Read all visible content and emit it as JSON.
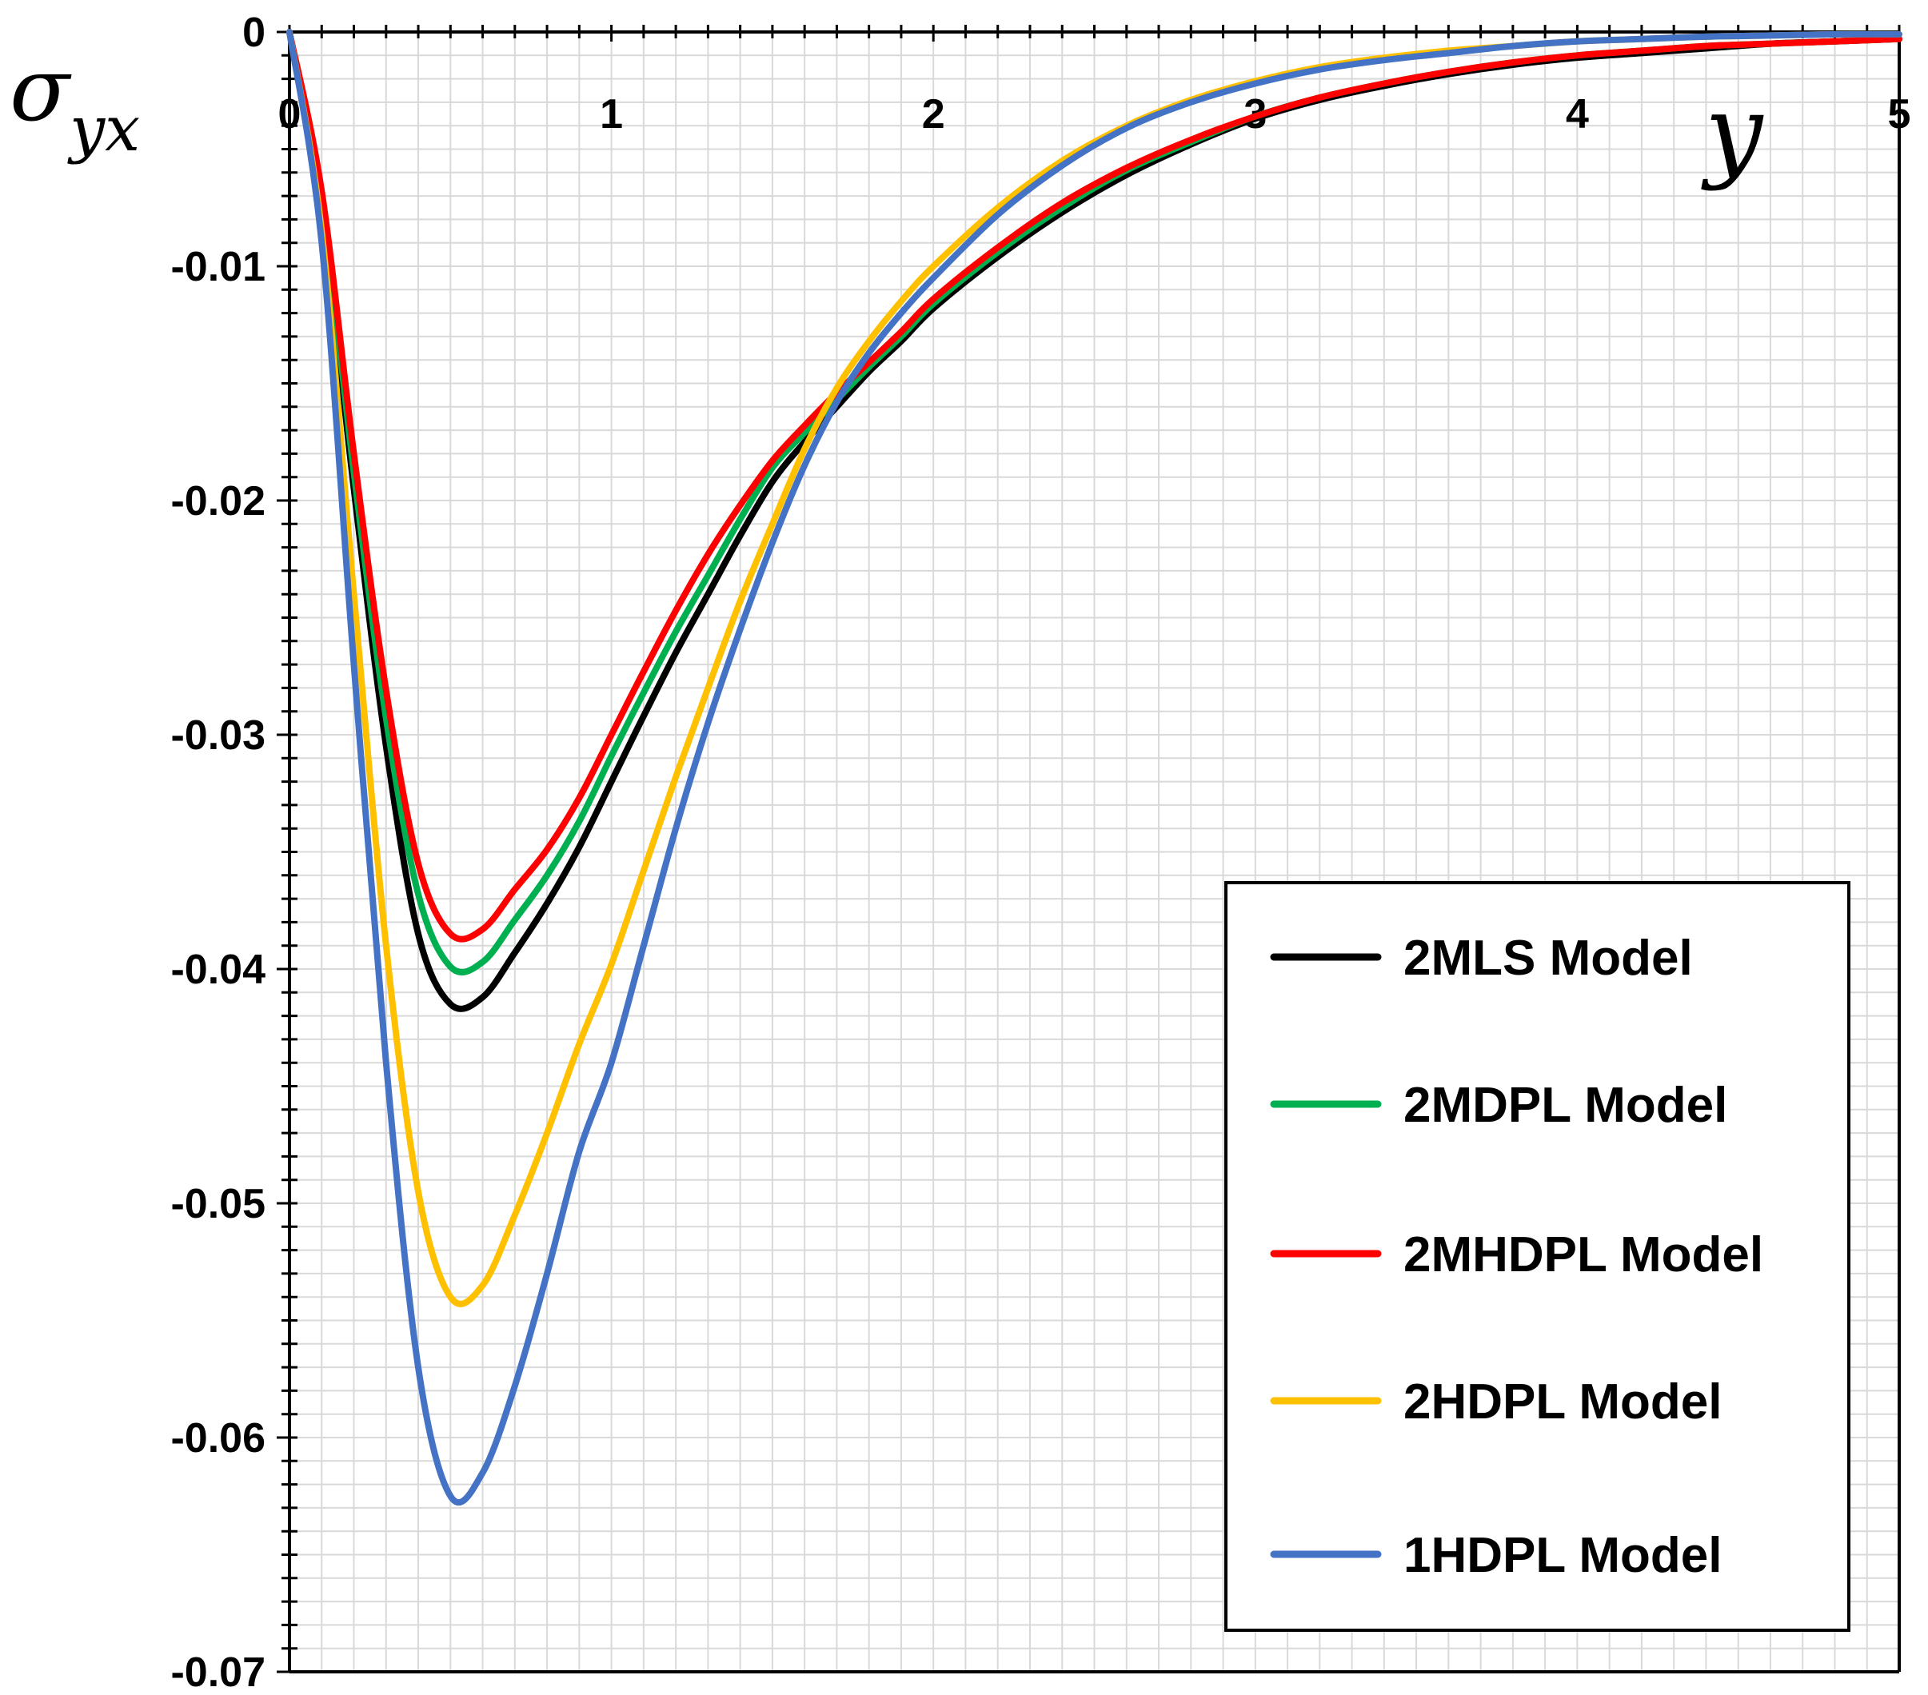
{
  "chart_data": {
    "type": "line",
    "title": "",
    "xlabel": "y",
    "ylabel": "σyx",
    "ylabel_main": "σ",
    "ylabel_sub": "yx",
    "xlim": [
      0,
      5
    ],
    "ylim": [
      -0.07,
      0
    ],
    "x_ticks": [
      0,
      1,
      2,
      3,
      4,
      5
    ],
    "x_tick_labels": [
      "0",
      "1",
      "2",
      "3",
      "4",
      "5"
    ],
    "y_ticks": [
      0,
      -0.01,
      -0.02,
      -0.03,
      -0.04,
      -0.05,
      -0.06,
      -0.07
    ],
    "y_tick_labels": [
      "0",
      "-0.01",
      "-0.02",
      "-0.03",
      "-0.04",
      "-0.05",
      "-0.06",
      "-0.07"
    ],
    "grid": true,
    "legend_position": "bottom-right",
    "x": [
      0,
      0.1,
      0.2,
      0.3,
      0.4,
      0.5,
      0.6,
      0.7,
      0.8,
      0.9,
      1.0,
      1.1,
      1.2,
      1.3,
      1.4,
      1.5,
      1.6,
      1.7,
      1.8,
      1.9,
      2.0,
      2.2,
      2.4,
      2.6,
      2.8,
      3.0,
      3.2,
      3.4,
      3.6,
      3.8,
      4.0,
      4.2,
      4.4,
      4.6,
      4.8,
      5.0
    ],
    "series": [
      {
        "name": "2MLS Model",
        "color": "#000000",
        "values": [
          0,
          -0.0075,
          -0.0195,
          -0.0305,
          -0.0385,
          -0.0415,
          -0.0412,
          -0.0393,
          -0.0372,
          -0.0348,
          -0.032,
          -0.0292,
          -0.0265,
          -0.024,
          -0.0215,
          -0.0192,
          -0.0175,
          -0.016,
          -0.0145,
          -0.0132,
          -0.0118,
          -0.0096,
          -0.0077,
          -0.0061,
          -0.0048,
          -0.0037,
          -0.0029,
          -0.0023,
          -0.0018,
          -0.0014,
          -0.0011,
          -0.0009,
          -0.0007,
          -0.0005,
          -0.0004,
          -0.0003
        ]
      },
      {
        "name": "2MDPL Model",
        "color": "#00b050",
        "values": [
          0,
          -0.0072,
          -0.0188,
          -0.0293,
          -0.0368,
          -0.0399,
          -0.0397,
          -0.0379,
          -0.036,
          -0.0337,
          -0.0309,
          -0.0282,
          -0.0256,
          -0.0232,
          -0.0208,
          -0.0186,
          -0.0171,
          -0.0157,
          -0.0143,
          -0.013,
          -0.0116,
          -0.0094,
          -0.0075,
          -0.0059,
          -0.0047,
          -0.0036,
          -0.0028,
          -0.0022,
          -0.0017,
          -0.0013,
          -0.001,
          -0.0008,
          -0.0006,
          -0.0005,
          -0.0004,
          -0.0003
        ]
      },
      {
        "name": "2MHDPL Model",
        "color": "#ff0000",
        "values": [
          0,
          -0.0068,
          -0.018,
          -0.0281,
          -0.0355,
          -0.0385,
          -0.0383,
          -0.0366,
          -0.0349,
          -0.0327,
          -0.03,
          -0.0273,
          -0.0247,
          -0.0223,
          -0.0202,
          -0.0183,
          -0.0168,
          -0.0154,
          -0.0141,
          -0.0128,
          -0.0114,
          -0.0092,
          -0.0073,
          -0.0058,
          -0.0046,
          -0.0036,
          -0.0028,
          -0.0022,
          -0.0017,
          -0.0013,
          -0.001,
          -0.0008,
          -0.0006,
          -0.0005,
          -0.0004,
          -0.0003
        ]
      },
      {
        "name": "2HDPL Model",
        "color": "#ffc000",
        "values": [
          0,
          -0.0085,
          -0.024,
          -0.039,
          -0.0495,
          -0.054,
          -0.0535,
          -0.0505,
          -0.047,
          -0.0432,
          -0.0398,
          -0.0358,
          -0.0318,
          -0.028,
          -0.0243,
          -0.021,
          -0.0178,
          -0.0152,
          -0.0132,
          -0.0115,
          -0.01,
          -0.0075,
          -0.0055,
          -0.004,
          -0.0029,
          -0.0021,
          -0.0015,
          -0.0011,
          -0.0008,
          -0.0006,
          -0.0004,
          -0.0003,
          -0.0002,
          -0.00015,
          -0.0001,
          -0.0001
        ]
      },
      {
        "name": "1HDPL Model",
        "color": "#4472c4",
        "values": [
          0,
          -0.009,
          -0.027,
          -0.044,
          -0.057,
          -0.0625,
          -0.0615,
          -0.0578,
          -0.053,
          -0.0478,
          -0.044,
          -0.039,
          -0.034,
          -0.0295,
          -0.0255,
          -0.0218,
          -0.0185,
          -0.0158,
          -0.0137,
          -0.012,
          -0.0105,
          -0.0078,
          -0.0057,
          -0.0041,
          -0.003,
          -0.0022,
          -0.0016,
          -0.0012,
          -0.0009,
          -0.0006,
          -0.0004,
          -0.0003,
          -0.0002,
          -0.00015,
          -0.0001,
          -0.0001
        ]
      }
    ]
  }
}
